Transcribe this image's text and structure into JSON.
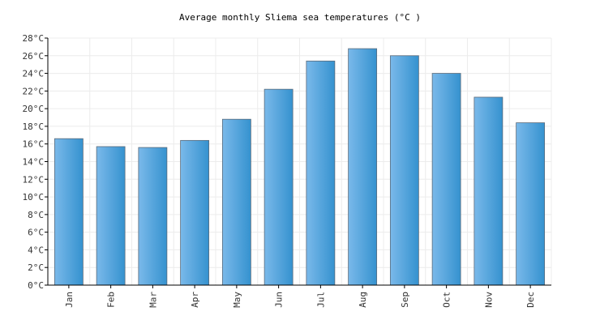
{
  "chart_data": {
    "type": "bar",
    "title": "Average monthly Sliema sea temperatures (°C )",
    "categories": [
      "Jan",
      "Feb",
      "Mar",
      "Apr",
      "May",
      "Jun",
      "Jul",
      "Aug",
      "Sep",
      "Oct",
      "Nov",
      "Dec"
    ],
    "values": [
      16.6,
      15.7,
      15.6,
      16.4,
      18.8,
      22.2,
      25.4,
      26.8,
      26.0,
      24.0,
      21.3,
      18.4
    ],
    "ylim": [
      0,
      28
    ],
    "yticks": [
      "0°C",
      "2°C",
      "4°C",
      "6°C",
      "8°C",
      "10°C",
      "12°C",
      "14°C",
      "16°C",
      "18°C",
      "20°C",
      "22°C",
      "24°C",
      "26°C",
      "28°C"
    ],
    "xlabel": "",
    "ylabel": "",
    "grid": true,
    "bar_color_light": "#7ab9ea",
    "bar_color_dark": "#3592cf",
    "bar_stroke": "#5a6a7a"
  }
}
